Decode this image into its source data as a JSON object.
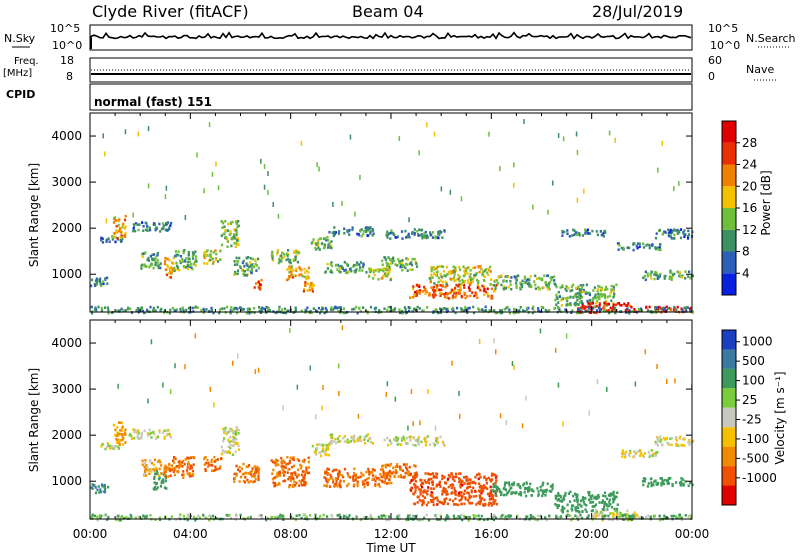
{
  "header": {
    "station": "Clyde River (fitACF)",
    "beam": "Beam 04",
    "date": "28/Jul/2019"
  },
  "params": {
    "nsky_label": "N.Sky",
    "nsearch_label": "N.Search",
    "noise_ticks": [
      "10^5",
      "10^0"
    ],
    "freq_label": "Freq.",
    "freq_unit": "[MHz]",
    "freq_ticks": [
      "18",
      "8"
    ],
    "nave_label": "Nave",
    "nave_ticks": [
      "60",
      "0"
    ],
    "cpid_label": "CPID",
    "cpid_value": "normal (fast) 151"
  },
  "x_axis": {
    "label": "Time UT",
    "ticks": [
      "00:00",
      "04:00",
      "08:00",
      "12:00",
      "16:00",
      "20:00",
      "00:00"
    ]
  },
  "y_axis": {
    "label": "Slant Range [km]",
    "ticks": [
      "1000",
      "2000",
      "3000",
      "4000"
    ]
  },
  "power_scale": {
    "label": "Power [dB]",
    "ticks": [
      "4",
      "8",
      "12",
      "16",
      "20",
      "24",
      "28"
    ],
    "colors": [
      "#0a20e0",
      "#2e5fb8",
      "#3d8f64",
      "#6fbf3a",
      "#f2c200",
      "#f08000",
      "#e83000",
      "#e00000"
    ]
  },
  "velocity_scale": {
    "label": "Velocity [m s⁻¹]",
    "ticks": [
      "1000",
      "500",
      "100",
      "25",
      "-25",
      "-100",
      "-500",
      "-1000"
    ],
    "colors": [
      "#1a3fc0",
      "#3a7aa0",
      "#3d9a5a",
      "#7acc3a",
      "#c8c8c0",
      "#f4c000",
      "#f28a00",
      "#f05000",
      "#e00000"
    ]
  },
  "chart_data": [
    {
      "type": "heatmap",
      "panel": "power",
      "x_range_hours": [
        0,
        24
      ],
      "y_range_km": [
        180,
        4500
      ],
      "series": [
        {
          "t0": 0.0,
          "t1": 0.7,
          "r0": 760,
          "r1": 960,
          "v": 8
        },
        {
          "t0": 0.4,
          "t1": 1.3,
          "r0": 1720,
          "r1": 1850,
          "v": 8
        },
        {
          "t0": 0.9,
          "t1": 1.4,
          "r0": 1800,
          "r1": 2300,
          "v": 20
        },
        {
          "t0": 1.5,
          "t1": 3.2,
          "r0": 1950,
          "r1": 2150,
          "v": 8
        },
        {
          "t0": 2.0,
          "t1": 2.8,
          "r0": 1150,
          "r1": 1500,
          "v": 12
        },
        {
          "t0": 2.9,
          "t1": 3.3,
          "r0": 950,
          "r1": 1400,
          "v": 22
        },
        {
          "t0": 3.3,
          "t1": 4.2,
          "r0": 1100,
          "r1": 1550,
          "v": 12
        },
        {
          "t0": 4.5,
          "t1": 5.2,
          "r0": 1250,
          "r1": 1550,
          "v": 16
        },
        {
          "t0": 5.2,
          "t1": 5.9,
          "r0": 1600,
          "r1": 2200,
          "v": 14
        },
        {
          "t0": 5.7,
          "t1": 6.7,
          "r0": 1000,
          "r1": 1400,
          "v": 12
        },
        {
          "t0": 6.5,
          "t1": 6.8,
          "r0": 700,
          "r1": 950,
          "v": 24
        },
        {
          "t0": 7.2,
          "t1": 8.3,
          "r0": 1250,
          "r1": 1550,
          "v": 14
        },
        {
          "t0": 7.8,
          "t1": 8.7,
          "r0": 900,
          "r1": 1200,
          "v": 20
        },
        {
          "t0": 8.4,
          "t1": 8.9,
          "r0": 650,
          "r1": 850,
          "v": 22
        },
        {
          "t0": 8.8,
          "t1": 9.6,
          "r0": 1550,
          "r1": 1850,
          "v": 12
        },
        {
          "t0": 9.5,
          "t1": 11.3,
          "r0": 1850,
          "r1": 2050,
          "v": 8
        },
        {
          "t0": 9.3,
          "t1": 11.0,
          "r0": 1050,
          "r1": 1300,
          "v": 12
        },
        {
          "t0": 11.0,
          "t1": 12.0,
          "r0": 900,
          "r1": 1150,
          "v": 16
        },
        {
          "t0": 11.6,
          "t1": 13.0,
          "r0": 1100,
          "r1": 1400,
          "v": 12
        },
        {
          "t0": 11.7,
          "t1": 14.1,
          "r0": 1800,
          "r1": 2000,
          "v": 8
        },
        {
          "t0": 12.7,
          "t1": 16.2,
          "r0": 500,
          "r1": 800,
          "v": 24
        },
        {
          "t0": 13.5,
          "t1": 16.0,
          "r0": 800,
          "r1": 1200,
          "v": 16
        },
        {
          "t0": 16.0,
          "t1": 18.5,
          "r0": 700,
          "r1": 1000,
          "v": 12
        },
        {
          "t0": 18.5,
          "t1": 21.0,
          "r0": 350,
          "r1": 800,
          "v": 12
        },
        {
          "t0": 19.4,
          "t1": 21.5,
          "r0": 180,
          "r1": 400,
          "v": 28
        },
        {
          "t0": 21.2,
          "t1": 24.0,
          "r0": 200,
          "r1": 320,
          "v": 28
        },
        {
          "t0": 18.7,
          "t1": 20.5,
          "r0": 1850,
          "r1": 2000,
          "v": 8
        },
        {
          "t0": 21.0,
          "t1": 22.7,
          "r0": 1550,
          "r1": 1700,
          "v": 8
        },
        {
          "t0": 22.5,
          "t1": 24.0,
          "r0": 1800,
          "r1": 2000,
          "v": 8
        },
        {
          "t0": 22.0,
          "t1": 24.0,
          "r0": 900,
          "r1": 1100,
          "v": 12
        },
        {
          "t0": 0.0,
          "t1": 24.0,
          "r0": 180,
          "r1": 320,
          "v": 10
        }
      ]
    },
    {
      "type": "heatmap",
      "panel": "velocity",
      "x_range_hours": [
        0,
        24
      ],
      "y_range_km": [
        180,
        4500
      ],
      "series": [
        {
          "t0": 0.0,
          "t1": 0.7,
          "r0": 760,
          "r1": 960,
          "v": 300
        },
        {
          "t0": 0.4,
          "t1": 1.3,
          "r0": 1720,
          "r1": 1850,
          "v": 0
        },
        {
          "t0": 0.9,
          "t1": 1.4,
          "r0": 1800,
          "r1": 2300,
          "v": -80
        },
        {
          "t0": 1.5,
          "t1": 3.2,
          "r0": 1950,
          "r1": 2150,
          "v": 0
        },
        {
          "t0": 2.0,
          "t1": 2.8,
          "r0": 1150,
          "r1": 1500,
          "v": -60
        },
        {
          "t0": 2.5,
          "t1": 3.0,
          "r0": 850,
          "r1": 1250,
          "v": 200
        },
        {
          "t0": 2.9,
          "t1": 4.2,
          "r0": 1100,
          "r1": 1550,
          "v": -300
        },
        {
          "t0": 4.5,
          "t1": 5.2,
          "r0": 1250,
          "r1": 1550,
          "v": -300
        },
        {
          "t0": 5.2,
          "t1": 5.9,
          "r0": 1600,
          "r1": 2200,
          "v": 0
        },
        {
          "t0": 5.7,
          "t1": 6.7,
          "r0": 1000,
          "r1": 1400,
          "v": -300
        },
        {
          "t0": 7.2,
          "t1": 8.7,
          "r0": 900,
          "r1": 1550,
          "v": -300
        },
        {
          "t0": 8.8,
          "t1": 9.6,
          "r0": 1550,
          "r1": 1850,
          "v": 0
        },
        {
          "t0": 9.5,
          "t1": 11.3,
          "r0": 1850,
          "r1": 2050,
          "v": 0
        },
        {
          "t0": 9.3,
          "t1": 12.0,
          "r0": 900,
          "r1": 1300,
          "v": -300
        },
        {
          "t0": 11.6,
          "t1": 13.0,
          "r0": 1100,
          "r1": 1400,
          "v": -300
        },
        {
          "t0": 11.7,
          "t1": 14.1,
          "r0": 1800,
          "r1": 2000,
          "v": 0
        },
        {
          "t0": 12.7,
          "t1": 16.2,
          "r0": 500,
          "r1": 1200,
          "v": -700
        },
        {
          "t0": 16.0,
          "t1": 18.5,
          "r0": 700,
          "r1": 1000,
          "v": 200
        },
        {
          "t0": 18.5,
          "t1": 21.0,
          "r0": 350,
          "r1": 800,
          "v": 200
        },
        {
          "t0": 20.0,
          "t1": 22.0,
          "r0": 180,
          "r1": 400,
          "v": 0
        },
        {
          "t0": 22.0,
          "t1": 24.0,
          "r0": 900,
          "r1": 1100,
          "v": 200
        },
        {
          "t0": 22.5,
          "t1": 24.0,
          "r0": 1800,
          "r1": 2000,
          "v": 0
        },
        {
          "t0": 21.0,
          "t1": 22.7,
          "r0": 1550,
          "r1": 1700,
          "v": 0
        },
        {
          "t0": 0.0,
          "t1": 24.0,
          "r0": 180,
          "r1": 300,
          "v": 60
        }
      ]
    }
  ]
}
